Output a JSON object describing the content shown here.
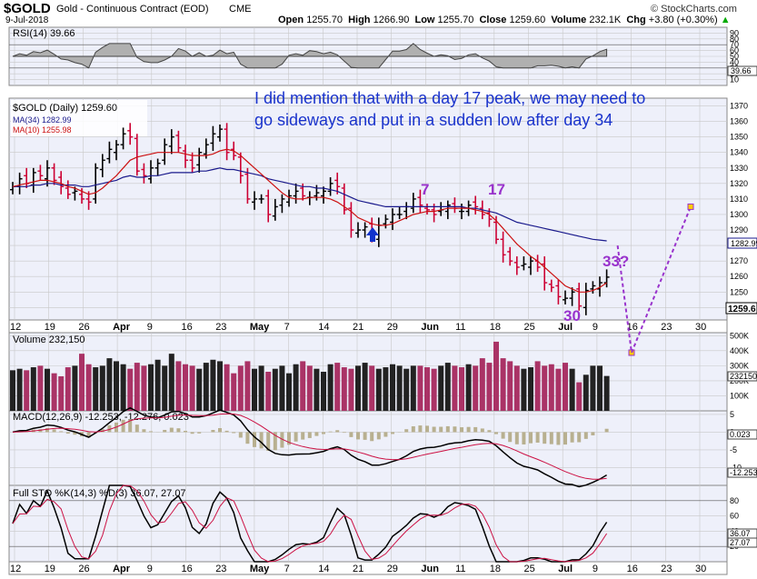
{
  "header": {
    "symbol": "$GOLD",
    "description": "Gold - Continuous Contract (EOD)",
    "exchange": "CME",
    "date": "9-Jul-2018",
    "watermark": "© StockCharts.com",
    "open_label": "Open",
    "open": "1255.70",
    "high_label": "High",
    "high": "1266.90",
    "low_label": "Low",
    "low": "1255.70",
    "close_label": "Close",
    "close": "1259.60",
    "volume_label": "Volume",
    "volume": "232.1K",
    "chg_label": "Chg",
    "chg": "+3.80 (+0.30%)",
    "chg_arrow": "▲"
  },
  "annotation": {
    "line1": "I did mention that with a day 17 peak, we may need to",
    "line2": "go sideways and put in a sudden low after day 34",
    "labels": [
      "7",
      "17",
      "30",
      "33?"
    ]
  },
  "colors": {
    "panel_bg": "#eef0fa",
    "grid": "#c8c8c8",
    "up": "#000000",
    "down": "#cc0033",
    "ma34": "#1a1a8c",
    "ma10": "#cc1111",
    "annotation_text": "#1a33cc",
    "cycle_label": "#9933cc",
    "arrow": "#1133cc",
    "vol_bar": "#aa3366",
    "macd_hist": "#b8b090"
  },
  "chart_data": [
    {
      "type": "line",
      "title": "RSI(14) 39.66",
      "indicator": "RSI(14)",
      "last": 39.66,
      "ylim": [
        0,
        100
      ],
      "yticks": [
        90,
        80,
        70,
        60,
        50,
        40,
        30,
        20,
        10
      ],
      "y_label_text": "39.66"
    },
    {
      "type": "candlestick",
      "title": "$GOLD (Daily) 1259.60",
      "series": [
        {
          "name": "$GOLD (Daily) 1259.60"
        },
        {
          "name": "MA(34) 1282.99"
        },
        {
          "name": "MA(10) 1255.98"
        }
      ],
      "ylim": [
        1232,
        1375
      ],
      "yticks": [
        1370,
        1360,
        1350,
        1340,
        1330,
        1320,
        1310,
        1300,
        1290,
        1280,
        1270,
        1260,
        1250,
        1240
      ],
      "right_labels": [
        "1282.99",
        "1259.6"
      ],
      "x_tick_labels": [
        "12",
        "19",
        "26",
        "Apr",
        "9",
        "16",
        "23",
        "May",
        "7",
        "14",
        "21",
        "29",
        "Jun",
        "11",
        "18",
        "25",
        "Jul",
        "9",
        "16",
        "23",
        "30"
      ],
      "closes": [
        1318,
        1323,
        1320,
        1327,
        1325,
        1330,
        1322,
        1318,
        1313,
        1315,
        1310,
        1308,
        1330,
        1335,
        1342,
        1345,
        1352,
        1350,
        1328,
        1325,
        1330,
        1333,
        1345,
        1350,
        1343,
        1335,
        1330,
        1340,
        1345,
        1352,
        1355,
        1340,
        1338,
        1325,
        1310,
        1310,
        1310,
        1300,
        1305,
        1310,
        1312,
        1315,
        1312,
        1311,
        1314,
        1315,
        1320,
        1318,
        1303,
        1290,
        1290,
        1292,
        1285,
        1293,
        1297,
        1300,
        1300,
        1305,
        1310,
        1306,
        1303,
        1300,
        1303,
        1306,
        1304,
        1302,
        1306,
        1305,
        1300,
        1297,
        1284,
        1274,
        1270,
        1266,
        1268,
        1270,
        1266,
        1256,
        1253,
        1247,
        1246,
        1250,
        1241,
        1251,
        1254,
        1256,
        1259.6
      ],
      "ma34": [
        1318,
        1318,
        1318,
        1319,
        1319,
        1320,
        1320,
        1319,
        1319,
        1319,
        1318,
        1318,
        1319,
        1320,
        1321,
        1322,
        1324,
        1325,
        1324,
        1324,
        1325,
        1325,
        1326,
        1327,
        1327,
        1327,
        1327,
        1328,
        1328,
        1329,
        1330,
        1329,
        1329,
        1328,
        1327,
        1326,
        1325,
        1323,
        1322,
        1321,
        1320,
        1319,
        1318,
        1318,
        1317,
        1317,
        1316,
        1315,
        1313,
        1311,
        1309,
        1308,
        1307,
        1306,
        1305,
        1305,
        1305,
        1305,
        1305,
        1305,
        1305,
        1305,
        1305,
        1305,
        1305,
        1305,
        1304,
        1304,
        1303,
        1302,
        1301,
        1299,
        1297,
        1295,
        1294,
        1293,
        1292,
        1291,
        1290,
        1289,
        1288,
        1287,
        1286,
        1285,
        1284,
        1283.5,
        1282.99
      ],
      "ma10": [
        1318,
        1319,
        1320,
        1321,
        1322,
        1322,
        1321,
        1320,
        1318,
        1317,
        1315,
        1313,
        1314,
        1317,
        1321,
        1325,
        1330,
        1335,
        1337,
        1338,
        1339,
        1340,
        1340,
        1340,
        1340,
        1339,
        1338,
        1338,
        1338,
        1339,
        1341,
        1342,
        1341,
        1338,
        1334,
        1330,
        1326,
        1322,
        1318,
        1314,
        1311,
        1310,
        1310,
        1311,
        1311,
        1311,
        1310,
        1308,
        1305,
        1302,
        1298,
        1296,
        1294,
        1293,
        1293,
        1294,
        1296,
        1298,
        1300,
        1301,
        1302,
        1302,
        1303,
        1304,
        1304,
        1304,
        1304,
        1303,
        1302,
        1300,
        1296,
        1291,
        1286,
        1281,
        1277,
        1273,
        1270,
        1266,
        1262,
        1258,
        1254,
        1252,
        1250,
        1250,
        1251,
        1253,
        1255.98
      ],
      "projection": [
        [
          1280,
          1262
        ],
        [
          1256,
          1236
        ],
        [
          1236,
          1305
        ]
      ]
    },
    {
      "type": "bar",
      "title": "Volume 232,150",
      "ylim": [
        0,
        520000
      ],
      "yticks": [
        500000,
        400000,
        300000,
        200000,
        100000
      ],
      "ytick_labels": [
        "500K",
        "400K",
        "300K",
        "200K",
        "100K"
      ],
      "last_label": "232150",
      "values": [
        270,
        280,
        270,
        290,
        300,
        280,
        250,
        230,
        290,
        300,
        380,
        310,
        290,
        300,
        350,
        330,
        310,
        280,
        320,
        300,
        310,
        340,
        300,
        380,
        330,
        310,
        300,
        280,
        320,
        340,
        330,
        310,
        250,
        300,
        330,
        280,
        300,
        260,
        280,
        300,
        250,
        310,
        330,
        300,
        280,
        260,
        310,
        320,
        290,
        280,
        300,
        320,
        300,
        280,
        290,
        310,
        300,
        280,
        300,
        300,
        290,
        280,
        300,
        320,
        300,
        290,
        310,
        300,
        350,
        320,
        460,
        350,
        330,
        300,
        280,
        290,
        330,
        300,
        310,
        280,
        320,
        280,
        190,
        240,
        300,
        300,
        232
      ]
    },
    {
      "type": "line",
      "title": "MACD(12,26,9) -12.253, -12.276, 0.023",
      "ylim": [
        -15,
        6
      ],
      "yticks": [
        5,
        0,
        -5,
        -10
      ],
      "right_labels": [
        "0.023",
        "-12.253"
      ]
    },
    {
      "type": "line",
      "title": "Full STO %K(14,3) %D(3) 36.07, 27.07",
      "ylim": [
        0,
        100
      ],
      "yticks": [
        80,
        60,
        40,
        20
      ],
      "right_labels": [
        "36.07",
        "27.07"
      ]
    }
  ]
}
